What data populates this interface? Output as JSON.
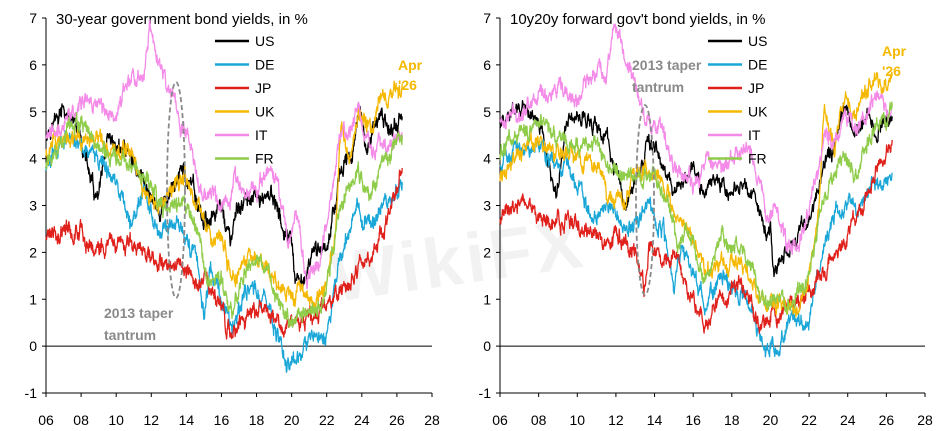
{
  "watermark": "WikiFX",
  "colors": {
    "US": "#000000",
    "DE": "#1aa7d8",
    "JP": "#e0201b",
    "UK": "#f5b800",
    "IT": "#f48be8",
    "FR": "#8fcc4a",
    "taper": "#8a8a8a",
    "apr": "#f5b800"
  },
  "chart_data": [
    {
      "type": "line",
      "title": "30-year government bond yields, in %",
      "xlabel": "",
      "ylabel": "",
      "x_ticks": [
        "06",
        "08",
        "10",
        "12",
        "14",
        "16",
        "18",
        "20",
        "22",
        "24",
        "26",
        "28"
      ],
      "y_ticks": [
        "-1",
        "0",
        "1",
        "2",
        "3",
        "4",
        "5",
        "6",
        "7"
      ],
      "xlim": [
        2006,
        2028
      ],
      "ylim": [
        -1,
        7
      ],
      "legend": [
        "US",
        "DE",
        "JP",
        "UK",
        "IT",
        "FR"
      ],
      "legend_position": "top-right",
      "annotations": {
        "taper": [
          "2013 taper",
          "tantrum"
        ],
        "latest": [
          "Apr",
          "'26"
        ]
      },
      "series": [
        {
          "name": "US",
          "x": [
            2006.0,
            2007.0,
            2008.0,
            2008.9,
            2009.5,
            2010.5,
            2011.5,
            2012.5,
            2013.0,
            2013.7,
            2014.5,
            2015.0,
            2016.0,
            2016.5,
            2017.0,
            2018.0,
            2018.8,
            2019.5,
            2020.0,
            2020.2,
            2020.8,
            2021.5,
            2022.0,
            2022.8,
            2023.3,
            2023.8,
            2024.3,
            2024.7,
            2025.2,
            2025.6,
            2026.3
          ],
          "y": [
            4.6,
            5.0,
            4.4,
            3.0,
            4.2,
            4.2,
            3.6,
            2.8,
            3.1,
            3.8,
            3.2,
            2.6,
            3.0,
            2.2,
            3.0,
            3.1,
            3.3,
            2.5,
            2.1,
            1.2,
            1.5,
            2.1,
            2.1,
            3.8,
            3.9,
            5.0,
            4.3,
            4.6,
            4.9,
            4.6,
            4.9
          ]
        },
        {
          "name": "DE",
          "x": [
            2006.0,
            2007.0,
            2008.0,
            2009.0,
            2010.0,
            2010.8,
            2011.5,
            2012.5,
            2013.0,
            2013.7,
            2014.5,
            2015.0,
            2015.4,
            2015.8,
            2016.6,
            2017.5,
            2018.5,
            2019.7,
            2020.5,
            2021.0,
            2021.8,
            2022.0,
            2022.8,
            2023.5,
            2023.8,
            2024.5,
            2025.0,
            2025.5,
            2026.3
          ],
          "y": [
            3.8,
            4.4,
            4.3,
            4.0,
            3.5,
            2.6,
            3.3,
            2.3,
            2.5,
            2.6,
            1.9,
            0.7,
            1.6,
            1.3,
            0.3,
            1.3,
            1.0,
            -0.3,
            -0.2,
            0.1,
            0.3,
            0.2,
            2.0,
            2.7,
            2.9,
            2.5,
            2.9,
            3.1,
            3.5
          ]
        },
        {
          "name": "JP",
          "x": [
            2006.0,
            2007.0,
            2008.0,
            2008.8,
            2009.5,
            2010.5,
            2011.5,
            2012.5,
            2013.0,
            2013.7,
            2014.5,
            2015.2,
            2016.0,
            2016.6,
            2017.5,
            2018.5,
            2019.5,
            2020.5,
            2021.5,
            2022.0,
            2022.8,
            2023.5,
            2024.0,
            2024.8,
            2025.3,
            2025.8,
            2026.3
          ],
          "y": [
            2.3,
            2.5,
            2.4,
            2.1,
            2.3,
            2.1,
            2.0,
            1.9,
            1.7,
            1.8,
            1.4,
            1.4,
            0.8,
            0.1,
            0.8,
            0.9,
            0.4,
            0.6,
            0.7,
            0.8,
            1.2,
            1.4,
            1.8,
            2.1,
            2.5,
            3.1,
            3.8
          ]
        },
        {
          "name": "UK",
          "x": [
            2006.0,
            2007.0,
            2008.0,
            2009.0,
            2010.0,
            2011.0,
            2011.8,
            2012.5,
            2013.2,
            2013.9,
            2014.5,
            2015.2,
            2016.0,
            2016.6,
            2017.5,
            2018.5,
            2019.7,
            2020.3,
            2021.5,
            2022.0,
            2022.5,
            2022.8,
            2023.3,
            2023.8,
            2024.5,
            2025.0,
            2025.5,
            2026.3
          ],
          "y": [
            4.1,
            4.6,
            4.5,
            4.4,
            4.2,
            4.0,
            3.1,
            3.0,
            3.4,
            3.7,
            3.1,
            2.5,
            2.3,
            1.4,
            1.9,
            1.8,
            1.0,
            1.1,
            1.0,
            1.4,
            2.5,
            4.8,
            3.9,
            5.1,
            4.5,
            5.2,
            5.3,
            5.6
          ]
        },
        {
          "name": "IT",
          "x": [
            2006.0,
            2007.0,
            2008.0,
            2009.0,
            2010.0,
            2011.0,
            2011.5,
            2011.9,
            2012.2,
            2012.8,
            2013.5,
            2014.3,
            2015.0,
            2015.5,
            2016.0,
            2016.8,
            2017.5,
            2018.5,
            2018.9,
            2019.8,
            2020.2,
            2020.8,
            2021.5,
            2022.0,
            2022.8,
            2023.5,
            2023.8,
            2024.5,
            2025.0,
            2025.5,
            2026.3
          ],
          "y": [
            4.5,
            4.8,
            5.2,
            5.2,
            5.0,
            5.8,
            5.6,
            6.8,
            6.4,
            5.6,
            5.0,
            4.2,
            3.1,
            3.3,
            2.8,
            3.5,
            3.2,
            3.6,
            3.9,
            2.2,
            2.8,
            1.5,
            1.6,
            2.4,
            4.6,
            4.6,
            5.1,
            4.1,
            4.4,
            4.3,
            4.4
          ]
        },
        {
          "name": "FR",
          "x": [
            2006.0,
            2007.0,
            2008.0,
            2009.0,
            2010.0,
            2011.0,
            2011.8,
            2012.5,
            2013.3,
            2014.0,
            2014.8,
            2015.3,
            2016.0,
            2016.6,
            2017.5,
            2018.5,
            2019.7,
            2020.5,
            2021.0,
            2021.8,
            2022.0,
            2022.8,
            2023.5,
            2023.8,
            2024.5,
            2025.0,
            2025.5,
            2026.3
          ],
          "y": [
            3.9,
            4.5,
            4.7,
            4.3,
            3.9,
            3.9,
            3.5,
            3.0,
            3.0,
            3.1,
            2.2,
            1.3,
            1.5,
            0.7,
            1.9,
            1.6,
            0.6,
            0.8,
            0.6,
            0.9,
            1.3,
            3.0,
            3.5,
            3.7,
            3.2,
            3.9,
            4.1,
            4.5
          ]
        }
      ]
    },
    {
      "type": "line",
      "title": "10y20y forward gov't bond yields, in %",
      "xlabel": "",
      "ylabel": "",
      "x_ticks": [
        "06",
        "08",
        "10",
        "12",
        "14",
        "16",
        "18",
        "20",
        "22",
        "24",
        "26",
        "28"
      ],
      "y_ticks": [
        "-1",
        "0",
        "1",
        "2",
        "3",
        "4",
        "5",
        "6",
        "7"
      ],
      "xlim": [
        2006,
        2028
      ],
      "ylim": [
        -1,
        7
      ],
      "legend": [
        "US",
        "DE",
        "JP",
        "UK",
        "IT",
        "FR"
      ],
      "legend_position": "top-right",
      "annotations": {
        "taper": [
          "2013 taper",
          "tantrum"
        ],
        "latest": [
          "Apr",
          "'26"
        ]
      },
      "series": [
        {
          "name": "US",
          "x": [
            2006.0,
            2007.0,
            2008.0,
            2008.9,
            2009.5,
            2010.5,
            2011.5,
            2012.5,
            2013.0,
            2013.7,
            2014.5,
            2015.0,
            2016.0,
            2016.5,
            2017.0,
            2018.0,
            2018.8,
            2019.5,
            2020.0,
            2020.2,
            2020.8,
            2021.5,
            2022.0,
            2022.8,
            2023.3,
            2023.8,
            2024.3,
            2024.7,
            2025.2,
            2025.6,
            2026.3
          ],
          "y": [
            4.8,
            5.1,
            4.9,
            3.2,
            4.9,
            4.9,
            4.4,
            3.0,
            3.5,
            4.4,
            4.0,
            3.1,
            3.8,
            3.1,
            3.6,
            3.4,
            3.5,
            2.8,
            2.5,
            1.5,
            1.9,
            2.4,
            2.4,
            4.0,
            4.1,
            5.2,
            4.5,
            4.7,
            4.9,
            4.6,
            4.9
          ]
        },
        {
          "name": "DE",
          "x": [
            2006.0,
            2007.0,
            2008.0,
            2009.0,
            2010.0,
            2010.8,
            2011.5,
            2012.5,
            2013.0,
            2013.7,
            2014.5,
            2015.0,
            2015.4,
            2015.8,
            2016.6,
            2017.5,
            2018.5,
            2019.7,
            2020.5,
            2021.0,
            2021.8,
            2022.0,
            2022.8,
            2023.5,
            2023.8,
            2024.5,
            2025.0,
            2025.5,
            2026.3
          ],
          "y": [
            3.9,
            4.3,
            4.2,
            3.9,
            3.6,
            2.6,
            3.0,
            2.5,
            2.6,
            3.0,
            2.4,
            1.3,
            2.1,
            1.9,
            0.8,
            1.6,
            1.2,
            0.0,
            0.1,
            0.5,
            0.6,
            0.6,
            2.2,
            2.9,
            3.0,
            2.9,
            3.3,
            3.5,
            3.7
          ]
        },
        {
          "name": "JP",
          "x": [
            2006.0,
            2007.0,
            2008.0,
            2008.8,
            2009.5,
            2010.5,
            2011.5,
            2012.5,
            2013.0,
            2013.5,
            2013.7,
            2014.5,
            2015.2,
            2016.0,
            2016.6,
            2017.5,
            2018.5,
            2019.5,
            2020.5,
            2021.5,
            2022.0,
            2022.8,
            2023.5,
            2024.0,
            2024.8,
            2025.3,
            2025.8,
            2026.3
          ],
          "y": [
            2.7,
            3.0,
            2.9,
            2.6,
            2.7,
            2.4,
            2.3,
            2.3,
            2.1,
            1.1,
            2.1,
            2.0,
            1.9,
            1.0,
            0.3,
            1.1,
            1.2,
            0.4,
            0.8,
            1.0,
            1.2,
            1.6,
            2.1,
            2.4,
            3.0,
            3.6,
            4.0,
            4.4
          ]
        },
        {
          "name": "UK",
          "x": [
            2006.0,
            2007.0,
            2008.0,
            2009.0,
            2010.0,
            2011.0,
            2011.8,
            2012.5,
            2013.2,
            2013.9,
            2014.5,
            2015.2,
            2016.0,
            2016.6,
            2017.5,
            2018.5,
            2019.7,
            2020.3,
            2021.5,
            2022.0,
            2022.5,
            2022.8,
            2023.3,
            2023.8,
            2024.5,
            2025.0,
            2025.5,
            2026.3
          ],
          "y": [
            3.6,
            4.2,
            4.3,
            4.1,
            4.0,
            3.8,
            3.1,
            3.2,
            3.7,
            3.9,
            3.3,
            2.7,
            2.4,
            1.5,
            1.8,
            1.7,
            0.8,
            0.9,
            0.9,
            1.5,
            3.0,
            5.0,
            4.2,
            5.2,
            4.9,
            5.5,
            5.6,
            5.8
          ]
        },
        {
          "name": "IT",
          "x": [
            2006.0,
            2007.0,
            2008.0,
            2009.0,
            2010.0,
            2011.0,
            2011.5,
            2011.9,
            2012.2,
            2012.8,
            2013.5,
            2014.3,
            2015.0,
            2015.5,
            2016.0,
            2016.8,
            2017.5,
            2018.5,
            2018.9,
            2019.8,
            2020.2,
            2020.8,
            2021.5,
            2022.0,
            2022.8,
            2023.5,
            2023.8,
            2024.5,
            2025.0,
            2025.5,
            2026.3
          ],
          "y": [
            4.8,
            5.0,
            5.4,
            5.4,
            5.2,
            6.0,
            5.8,
            6.9,
            6.5,
            5.8,
            4.9,
            4.6,
            3.9,
            3.7,
            3.3,
            4.1,
            3.8,
            4.1,
            4.4,
            2.8,
            3.2,
            2.1,
            2.2,
            3.0,
            4.4,
            4.5,
            5.0,
            4.6,
            5.0,
            5.2,
            5.1
          ]
        },
        {
          "name": "FR",
          "x": [
            2006.0,
            2007.0,
            2008.0,
            2009.0,
            2010.0,
            2011.0,
            2011.8,
            2012.5,
            2013.3,
            2014.0,
            2014.8,
            2015.3,
            2016.0,
            2016.6,
            2017.5,
            2018.5,
            2019.7,
            2020.5,
            2021.0,
            2021.8,
            2022.0,
            2022.8,
            2023.5,
            2023.8,
            2024.5,
            2025.0,
            2025.5,
            2026.3
          ],
          "y": [
            4.1,
            4.5,
            4.8,
            4.5,
            4.2,
            4.3,
            3.9,
            3.5,
            3.6,
            3.7,
            2.9,
            2.2,
            2.3,
            1.4,
            2.3,
            2.0,
            0.9,
            1.0,
            0.9,
            1.2,
            1.6,
            3.2,
            3.8,
            4.0,
            3.7,
            4.3,
            4.6,
            5.1
          ]
        }
      ]
    }
  ]
}
